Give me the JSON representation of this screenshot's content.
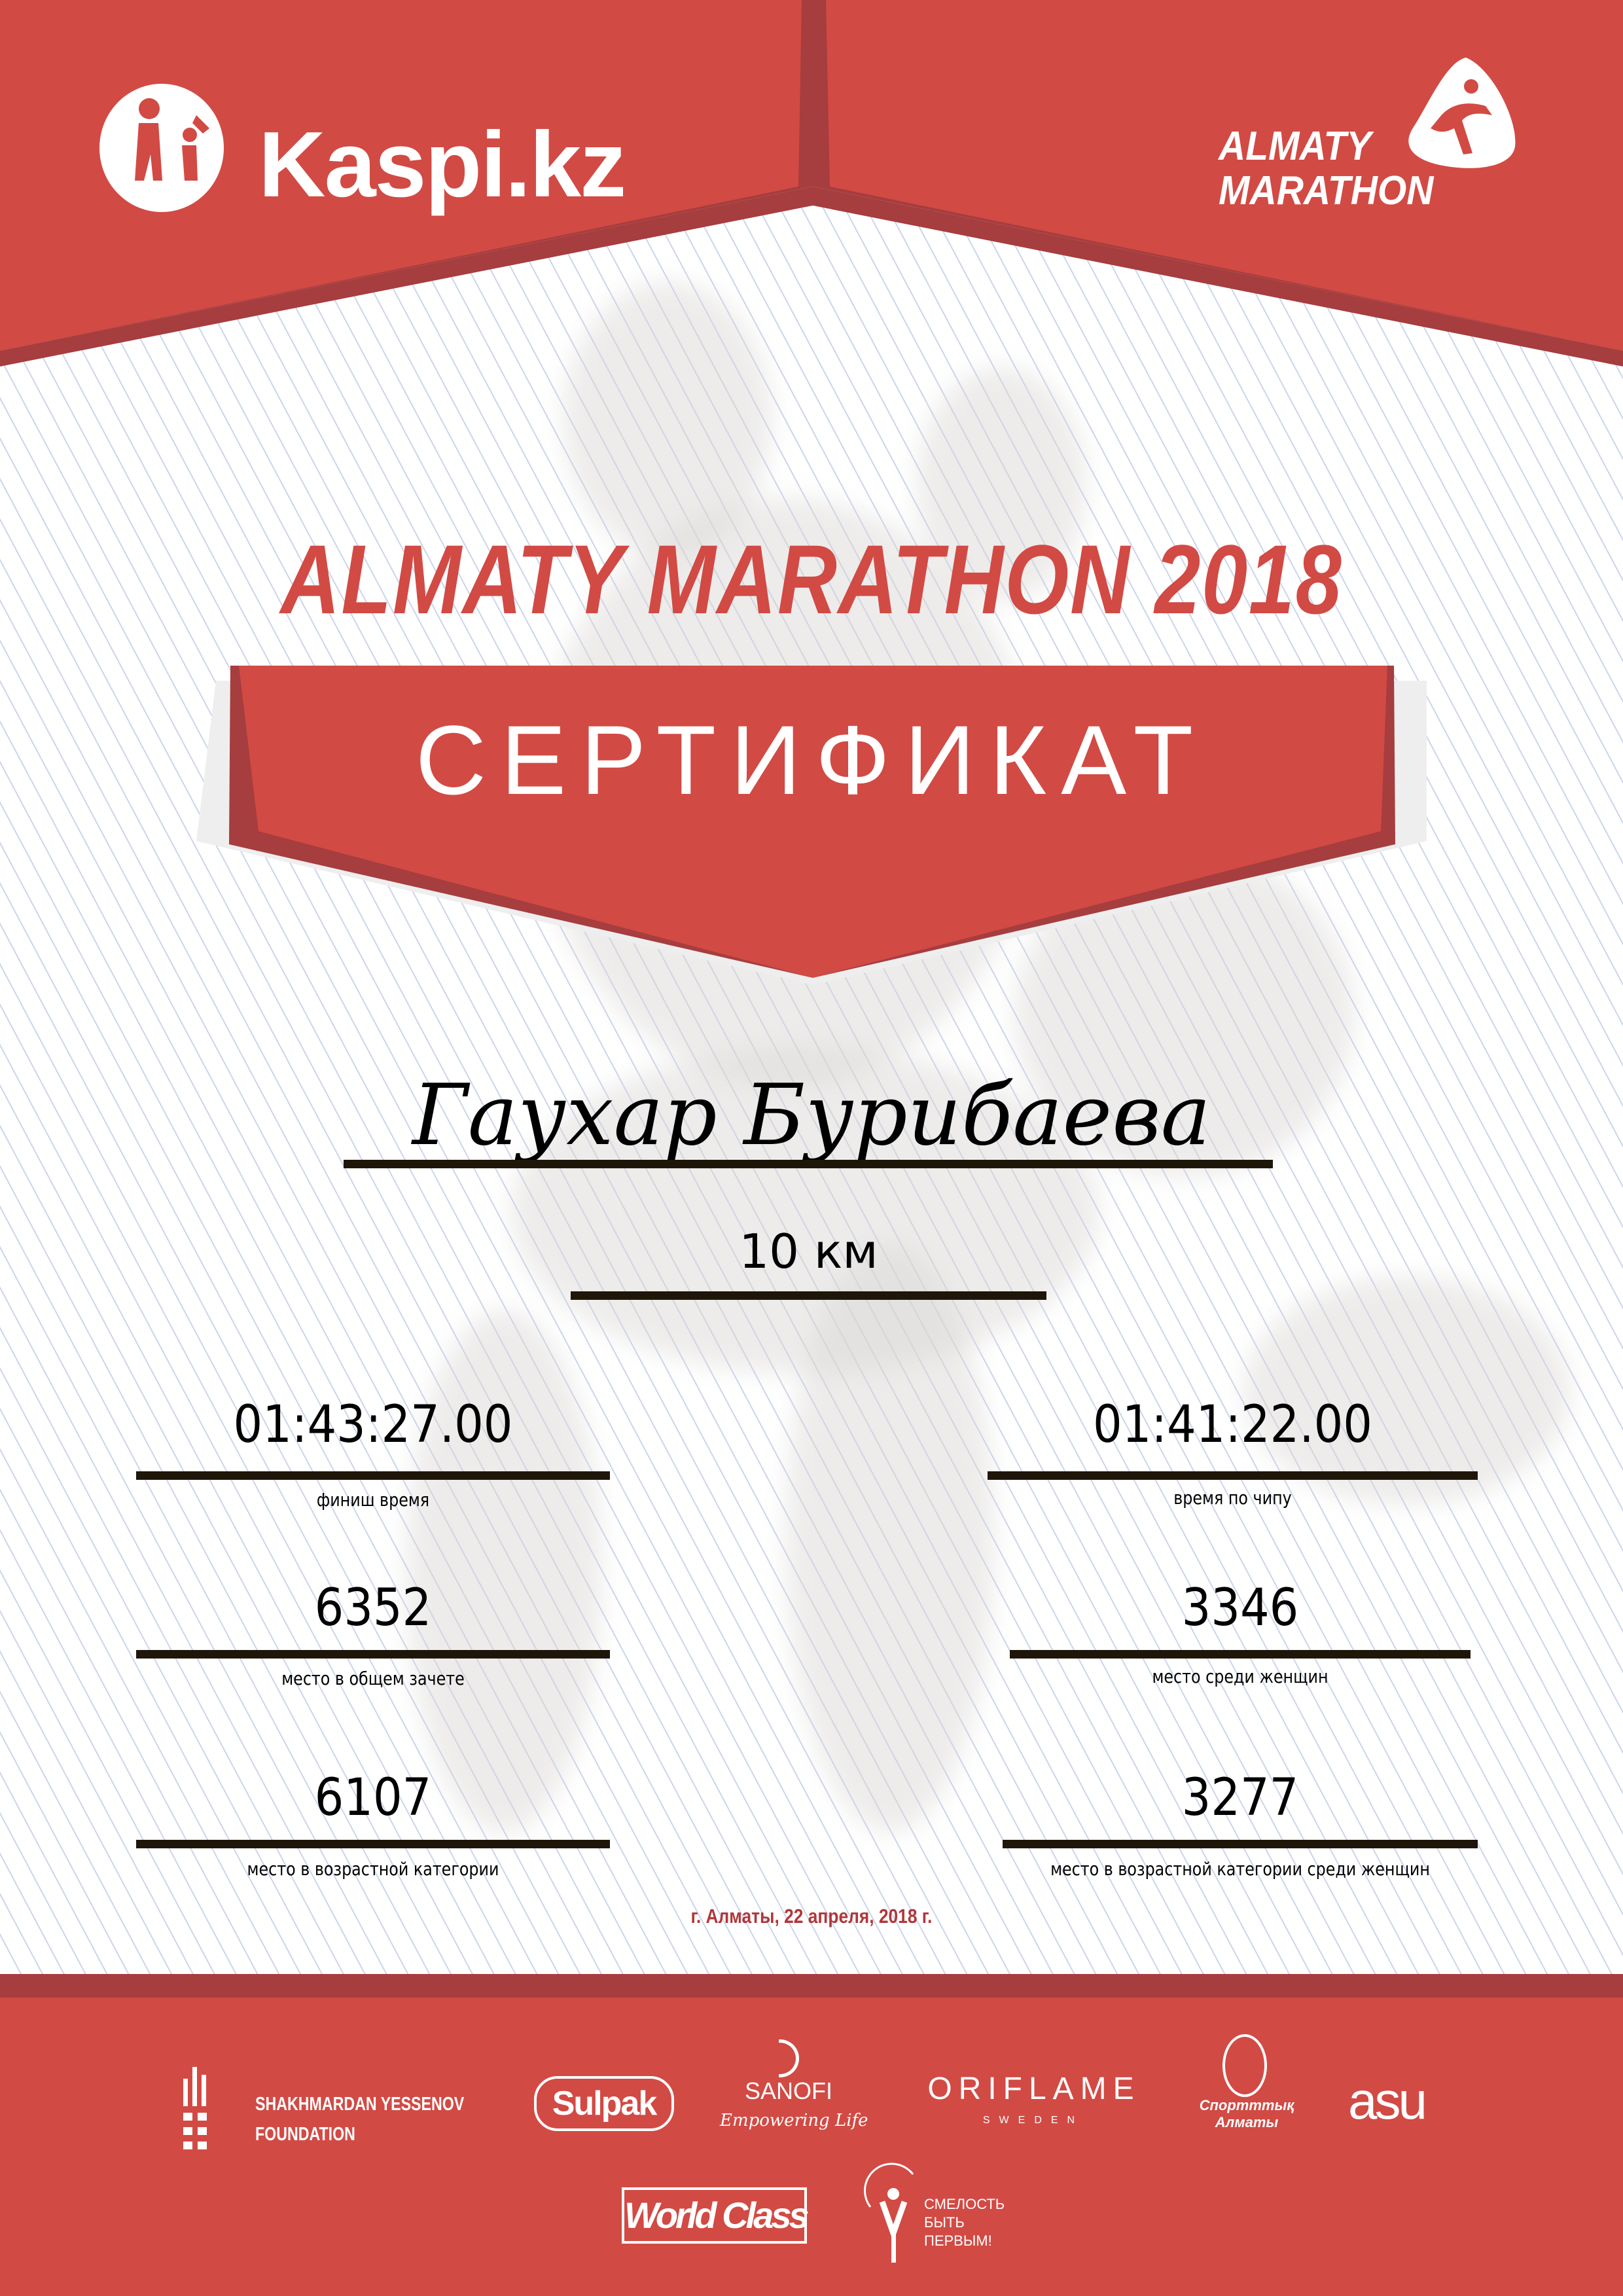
{
  "colors": {
    "brand_red": "#d24a44",
    "dark_red": "#a63d3e",
    "text": "#000000",
    "date_red": "#b0373a",
    "rule": "#1f160a"
  },
  "header": {
    "left_logo": {
      "text": "Kaspi.kz",
      "icon": "kaspi-family-icon"
    },
    "right_logo": {
      "line1": "ALMATY",
      "line2": "MARATHON",
      "icon": "runner-icon"
    }
  },
  "title": "ALMATY MARATHON 2018",
  "banner": "СЕРТИФИКАТ",
  "participant": {
    "name": "Гаухар Бурибаева",
    "distance": "10 км"
  },
  "results": {
    "left": [
      {
        "value": "01:43:27.00",
        "label": "финиш время"
      },
      {
        "value": "6352",
        "label": "место в общем зачете"
      },
      {
        "value": "6107",
        "label": "место в возрастной категории"
      }
    ],
    "right": [
      {
        "value": "01:41:22.00",
        "label": "время по чипу"
      },
      {
        "value": "3346",
        "label": "место среди женщин"
      },
      {
        "value": "3277",
        "label": "место в возрастной категории среди женщин"
      }
    ]
  },
  "date_line": "г. Алматы, 22 апреля, 2018 г.",
  "sponsors": {
    "yessenov": {
      "line1": "SHAKHMARDAN YESSENOV",
      "line2": "FOUNDATION"
    },
    "sulpak": "Sulpak",
    "sanofi": {
      "name": "SANOFI",
      "tagline": "Empowering Life"
    },
    "oriflame": {
      "name": "ORIFLAME",
      "sub": "SWEDEN"
    },
    "sport_almaty": {
      "line1": "Спортттық",
      "line2": "Алматы"
    },
    "asu": "asu",
    "worldclass": "World Class",
    "smelost": {
      "line1": "СМЕЛОСТЬ",
      "line2": "БЫТЬ",
      "line3": "ПЕРВЫМ!"
    }
  }
}
